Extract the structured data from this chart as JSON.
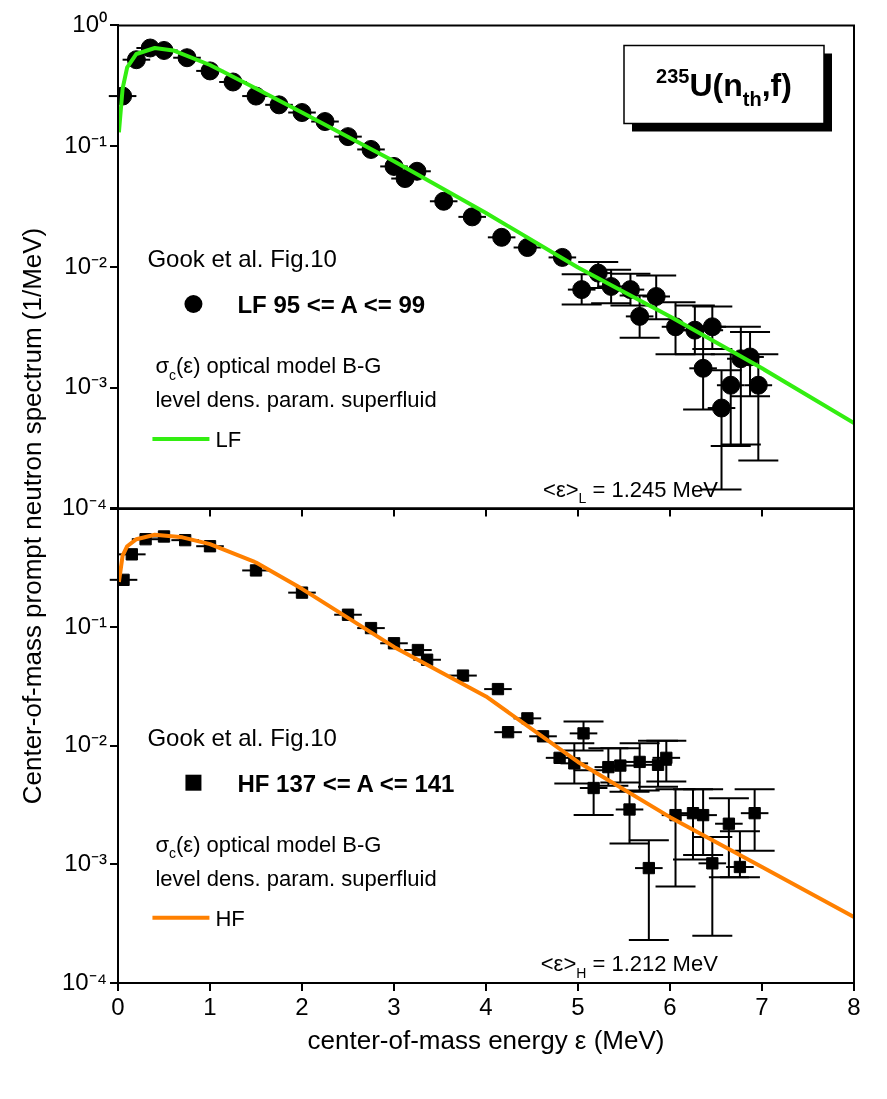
{
  "chart_data": [
    {
      "type": "scatter",
      "ylabel": "Center-of-mass prompt neutron spectrum (1/MeV)",
      "xlim": [
        0,
        8
      ],
      "xticks": [
        0,
        1,
        2,
        3,
        4,
        5,
        6,
        7,
        8
      ],
      "ylim": [
        0.0001,
        1
      ],
      "yticks": [
        {
          "value": 1,
          "label": "10⁰"
        },
        {
          "value": 0.1,
          "label": "10⁻¹"
        },
        {
          "value": 0.01,
          "label": "10⁻²"
        },
        {
          "value": 0.001,
          "label": "10⁻³"
        },
        {
          "value": 0.0001,
          "label": "10⁻⁴"
        }
      ],
      "log": "y",
      "tick_labels": "y",
      "legend": "left",
      "annotations": [
        "Gook et al. Fig.10",
        "σ$_{c}$(ε) optical model B-G",
        "level dens. param. superfluid",
        "<ε>$_{L}$ = 1.245 MeV",
        "$^{235}$U(n$_{th}$,f)"
      ],
      "series": [
        {
          "name": "LF 95 <= A <= 99",
          "type": "scatter",
          "marker": "circle",
          "color": "#000000",
          "x": [
            0.05,
            0.2,
            0.35,
            0.5,
            0.75,
            1.0,
            1.25,
            1.5,
            1.75,
            2.0,
            2.25,
            2.5,
            2.75,
            3.0,
            3.12,
            3.25,
            3.54,
            3.85,
            4.17,
            4.45,
            4.83,
            5.04,
            5.22,
            5.36,
            5.57,
            5.67,
            5.85,
            6.06,
            6.27,
            6.36,
            6.46,
            6.56,
            6.66,
            6.77,
            6.87,
            6.96
          ],
          "values": [
            0.26,
            0.52,
            0.65,
            0.62,
            0.54,
            0.42,
            0.34,
            0.26,
            0.22,
            0.19,
            0.16,
            0.12,
            0.094,
            0.068,
            0.054,
            0.062,
            0.035,
            0.026,
            0.0176,
            0.0145,
            0.012,
            0.0065,
            0.0089,
            0.0069,
            0.0065,
            0.0039,
            0.0057,
            0.0032,
            0.003,
            0.00145,
            0.0032,
            0.00068,
            0.00105,
            0.00174,
            0.0018,
            0.00105
          ],
          "errors": [
            null,
            null,
            null,
            null,
            null,
            null,
            null,
            null,
            null,
            null,
            null,
            null,
            null,
            null,
            null,
            null,
            null,
            null,
            null,
            null,
            null,
            [
              0.0049,
              0.0087
            ],
            [
              0.0067,
              0.011
            ],
            [
              0.005,
              0.0095
            ],
            [
              0.0048,
              0.0088
            ],
            [
              0.0026,
              0.0058
            ],
            [
              0.0037,
              0.0085
            ],
            [
              0.0019,
              0.0051
            ],
            [
              0.0019,
              0.0048
            ],
            [
              0.00066,
              0.003
            ],
            [
              0.0021,
              0.0047
            ],
            [
              0.000144,
              0.0014
            ],
            [
              0.00033,
              0.0019
            ],
            [
              0.00034,
              0.0032
            ],
            [
              0.00085,
              0.0029
            ],
            [
              0.00025,
              0.0019
            ]
          ],
          "xerrors": [
            0.15,
            0.15,
            0.15,
            0.15,
            0.15,
            0.15,
            0.15,
            0.15,
            0.15,
            0.15,
            0.15,
            0.15,
            0.15,
            0.15,
            0.15,
            0.15,
            0.15,
            0.15,
            0.15,
            0.15,
            0.15,
            0.15,
            0.15,
            0.15,
            0.15,
            0.15,
            0.15,
            0.15,
            0.15,
            0.15,
            0.15,
            0.15,
            0.15,
            0.15,
            0.15,
            0.15
          ]
        },
        {
          "name": "LF",
          "type": "line",
          "marker": "none",
          "color": "#33ee11",
          "x": [
            0.01,
            0.05,
            0.1,
            0.2,
            0.4,
            0.6,
            1.0,
            1.5,
            2,
            3,
            4,
            5,
            6,
            7,
            8
          ],
          "values": [
            0.13,
            0.3,
            0.45,
            0.58,
            0.65,
            0.62,
            0.47,
            0.3,
            0.19,
            0.075,
            0.028,
            0.0099,
            0.0039,
            0.00145,
            0.00051
          ]
        }
      ]
    },
    {
      "type": "scatter",
      "xlabel": "center-of-mass energy ε (MeV)",
      "xlim": [
        0,
        8
      ],
      "xticks": [
        0,
        1,
        2,
        3,
        4,
        5,
        6,
        7,
        8
      ],
      "ylim": [
        0.0001,
        1
      ],
      "yticks": [
        {
          "value": 1,
          "label": null
        },
        {
          "value": 0.1,
          "label": "10⁻¹"
        },
        {
          "value": 0.01,
          "label": "10⁻²"
        },
        {
          "value": 0.001,
          "label": "10⁻³"
        },
        {
          "value": 0.0001,
          "label": "10⁻⁴"
        }
      ],
      "log": "y",
      "legend": "left",
      "annotations": [
        "Gook et al. Fig.10",
        "σ$_{c}$(ε) optical model B-G",
        "level dens. param. superfluid",
        "<ε>$_{H}$ = 1.212 MeV"
      ],
      "series": [
        {
          "name": "HF 137 <= A <= 141",
          "type": "scatter",
          "marker": "square",
          "color": "#000000",
          "x": [
            0.06,
            0.15,
            0.3,
            0.5,
            0.73,
            1.0,
            1.5,
            2.0,
            2.5,
            2.75,
            3.0,
            3.26,
            3.36,
            3.75,
            4.13,
            4.24,
            4.45,
            4.62,
            4.8,
            4.96,
            5.06,
            5.17,
            5.33,
            5.46,
            5.56,
            5.67,
            5.77,
            5.87,
            5.96,
            6.06,
            6.25,
            6.36,
            6.46,
            6.64,
            6.76,
            6.92
          ],
          "values": [
            0.25,
            0.41,
            0.55,
            0.58,
            0.54,
            0.48,
            0.3,
            0.195,
            0.127,
            0.098,
            0.073,
            0.064,
            0.053,
            0.039,
            0.03,
            0.013,
            0.017,
            0.012,
            0.0079,
            0.0071,
            0.0127,
            0.0044,
            0.0066,
            0.0068,
            0.0029,
            0.0073,
            0.00093,
            0.0069,
            0.0079,
            0.0026,
            0.0027,
            0.0026,
            0.00102,
            0.0022,
            0.00095,
            0.0027
          ],
          "errors": [
            null,
            null,
            null,
            null,
            null,
            null,
            null,
            null,
            null,
            null,
            null,
            null,
            null,
            null,
            null,
            null,
            null,
            null,
            null,
            [
              0.0048,
              0.0105
            ],
            [
              0.0091,
              0.016
            ],
            [
              0.0026,
              0.0062
            ],
            [
              0.0046,
              0.0095
            ],
            [
              0.0049,
              0.0095
            ],
            [
              0.0015,
              0.0041
            ],
            [
              0.0042,
              0.0105
            ],
            [
              0.00023,
              0.0016
            ],
            [
              0.0045,
              0.011
            ],
            [
              0.005,
              0.011
            ],
            [
              0.00065,
              0.0043
            ],
            [
              0.0011,
              0.0043
            ],
            [
              0.0012,
              0.0043
            ],
            [
              0.00025,
              0.0017
            ],
            [
              0.00078,
              0.0036
            ],
            [
              0.00078,
              0.0019
            ],
            [
              0.0013,
              0.0043
            ]
          ],
          "xerrors": [
            0.15,
            0.15,
            0.15,
            0.15,
            0.15,
            0.15,
            0.15,
            0.15,
            0.15,
            0.15,
            0.15,
            0.15,
            0.15,
            0.15,
            0.15,
            0.15,
            0.15,
            0.15,
            0.15,
            0.15,
            0.15,
            0.15,
            0.15,
            0.15,
            0.15,
            0.15,
            0.15,
            0.15,
            0.15,
            0.15,
            0.15,
            0.15,
            0.15,
            0.15,
            0.15,
            0.15
          ]
        },
        {
          "name": "HF",
          "type": "line",
          "marker": "none",
          "color": "#ff8000",
          "x": [
            0.01,
            0.05,
            0.1,
            0.2,
            0.4,
            0.7,
            1.0,
            1.5,
            2,
            3,
            4,
            5,
            6,
            7,
            8
          ],
          "values": [
            0.24,
            0.4,
            0.48,
            0.55,
            0.6,
            0.57,
            0.5,
            0.35,
            0.21,
            0.068,
            0.026,
            0.0073,
            0.0025,
            0.00095,
            0.00036
          ]
        }
      ]
    }
  ]
}
